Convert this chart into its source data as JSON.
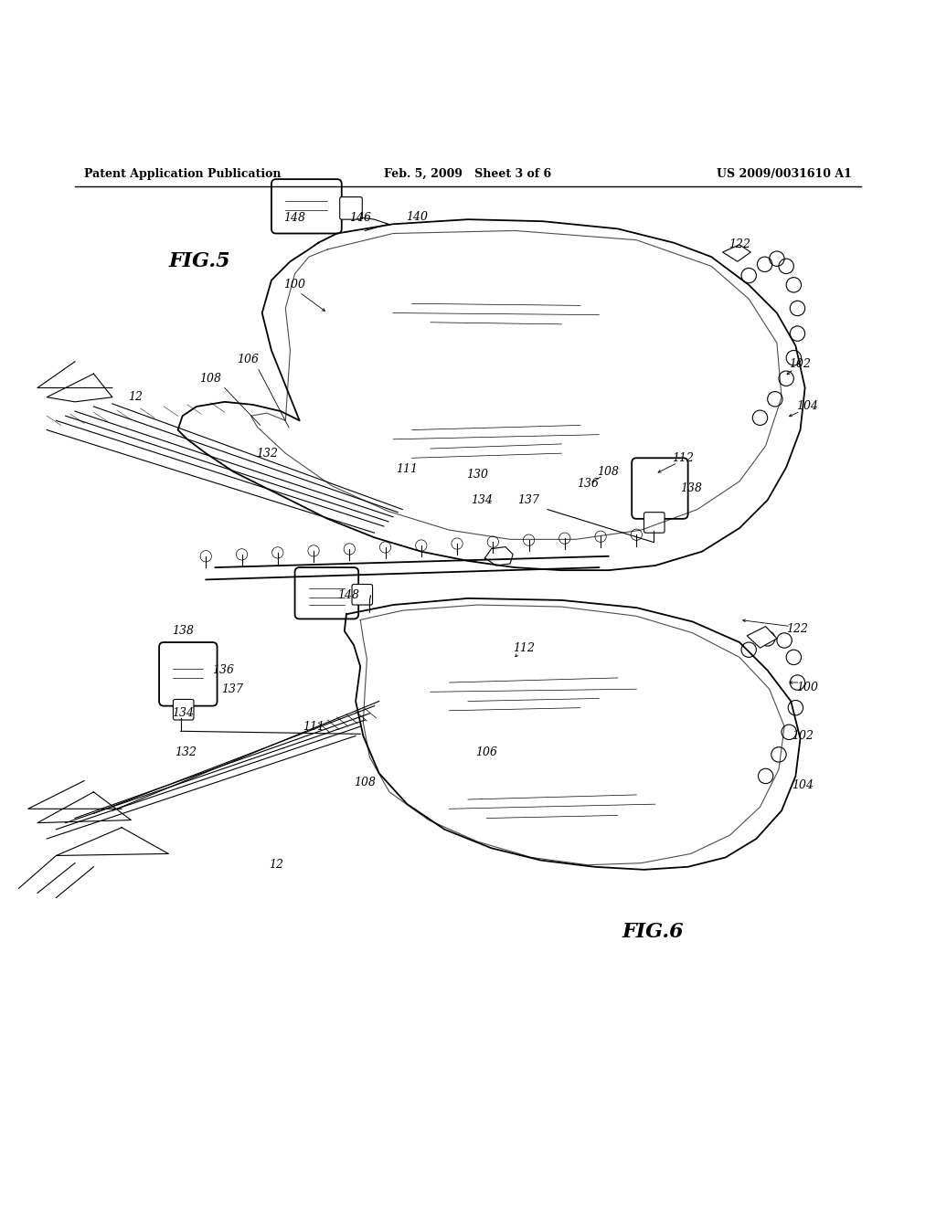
{
  "background_color": "#ffffff",
  "header_left": "Patent Application Publication",
  "header_center": "Feb. 5, 2009   Sheet 3 of 6",
  "header_right": "US 2009/0031610 A1",
  "fig5_label": "FIG.5",
  "fig6_label": "FIG.6"
}
